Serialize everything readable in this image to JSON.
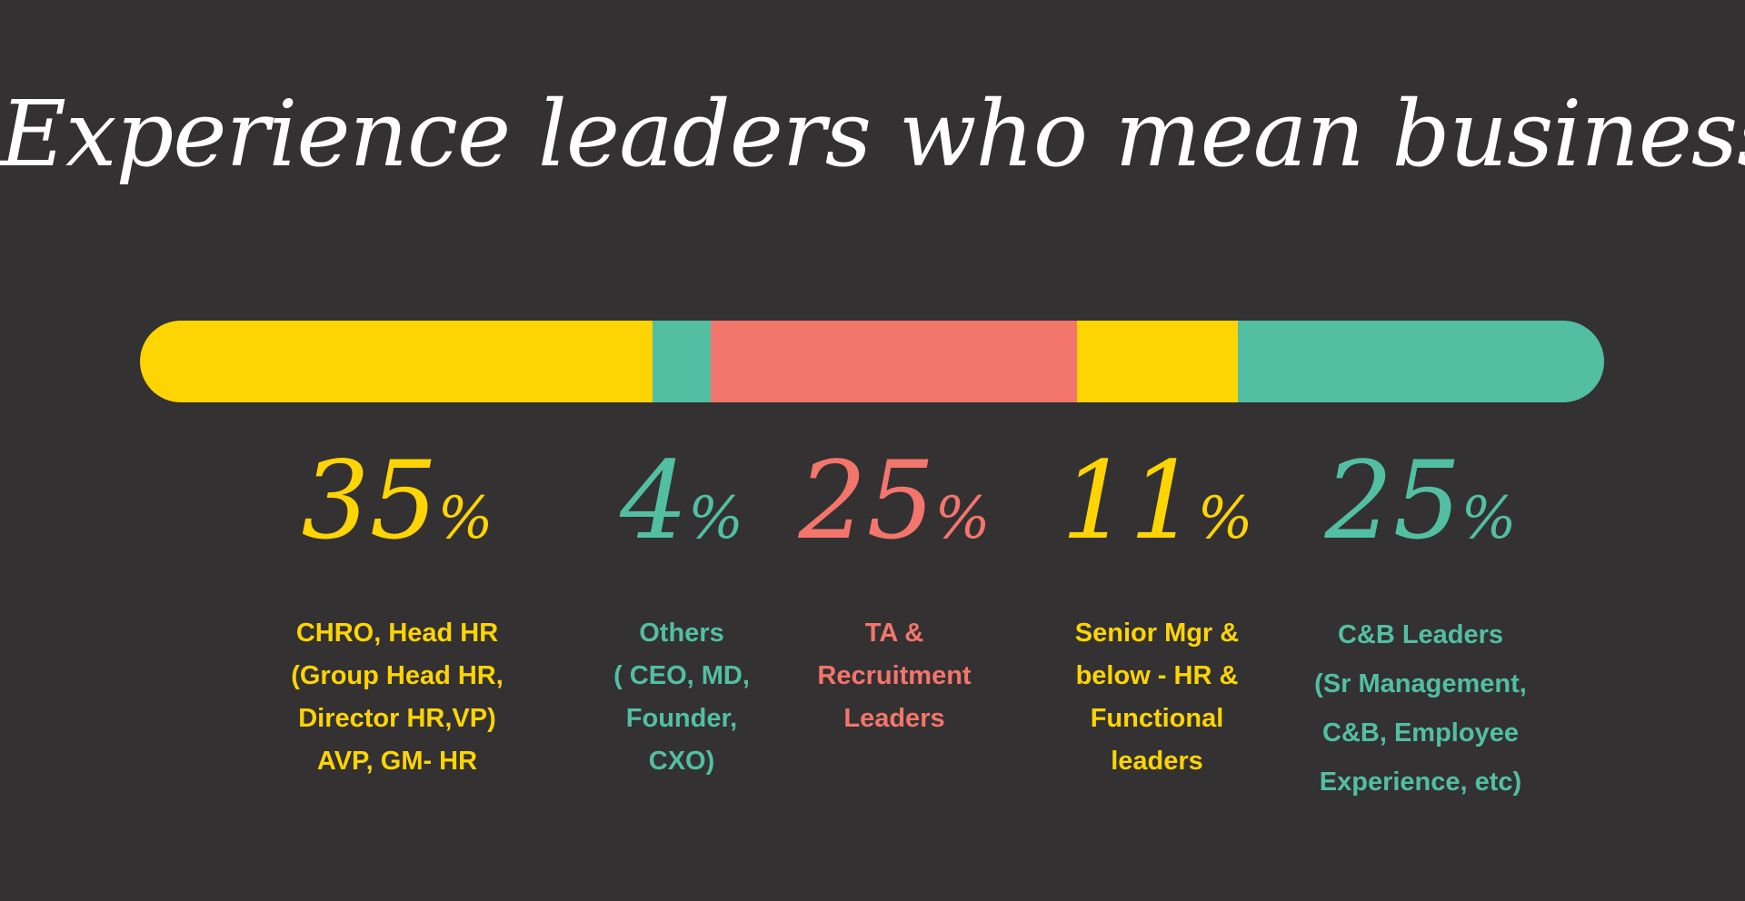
{
  "title": "Experience leaders who mean business",
  "colors": {
    "background": "#333132",
    "yellow": "#fed403",
    "teal": "#52bfa2",
    "coral": "#f3756c",
    "white": "#ffffff"
  },
  "chart_data": {
    "type": "stacked-bar",
    "title": "Experience leaders who mean business",
    "unit": "%",
    "segments": [
      {
        "value": 35,
        "value_text": "35",
        "color": "#fed403",
        "label_lines": [
          "CHRO, Head HR",
          "(Group Head HR,",
          "Director HR,VP)",
          "AVP, GM- HR"
        ]
      },
      {
        "value": 4,
        "value_text": "4",
        "color": "#52bfa2",
        "label_lines": [
          "Others",
          "( CEO, MD,",
          "Founder,",
          "CXO)"
        ]
      },
      {
        "value": 25,
        "value_text": "25",
        "color": "#f3756c",
        "label_lines": [
          "TA &",
          "Recruitment",
          "Leaders"
        ]
      },
      {
        "value": 11,
        "value_text": "11",
        "color": "#fed403",
        "label_lines": [
          "Senior Mgr &",
          "below - HR &",
          "Functional",
          "leaders"
        ]
      },
      {
        "value": 25,
        "value_text": "25",
        "color": "#52bfa2",
        "label_lines": [
          "C&B Leaders",
          "(Sr Management,",
          "C&B, Employee",
          "Experience, etc)"
        ]
      }
    ]
  }
}
